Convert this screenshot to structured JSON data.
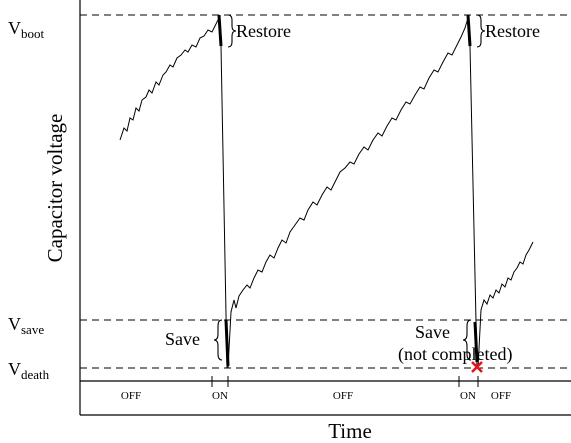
{
  "y_axis_title": "Capacitor voltage",
  "x_axis_title": "Time",
  "thresholds": {
    "boot": {
      "main": "V",
      "sub": "boot"
    },
    "save": {
      "main": "V",
      "sub": "save"
    },
    "death": {
      "main": "V",
      "sub": "death"
    }
  },
  "annotations": {
    "restore_1": "Restore",
    "restore_2": "Restore",
    "save_1": "Save",
    "save_2_line1": "Save",
    "save_2_line2": "(not completed)"
  },
  "timeline_states": [
    "OFF",
    "ON",
    "OFF",
    "ON",
    "OFF"
  ],
  "colors": {
    "failure_marker": "#e8101b",
    "ink": "#000000"
  },
  "icons": {
    "failure_marker": "x-mark-icon"
  }
}
